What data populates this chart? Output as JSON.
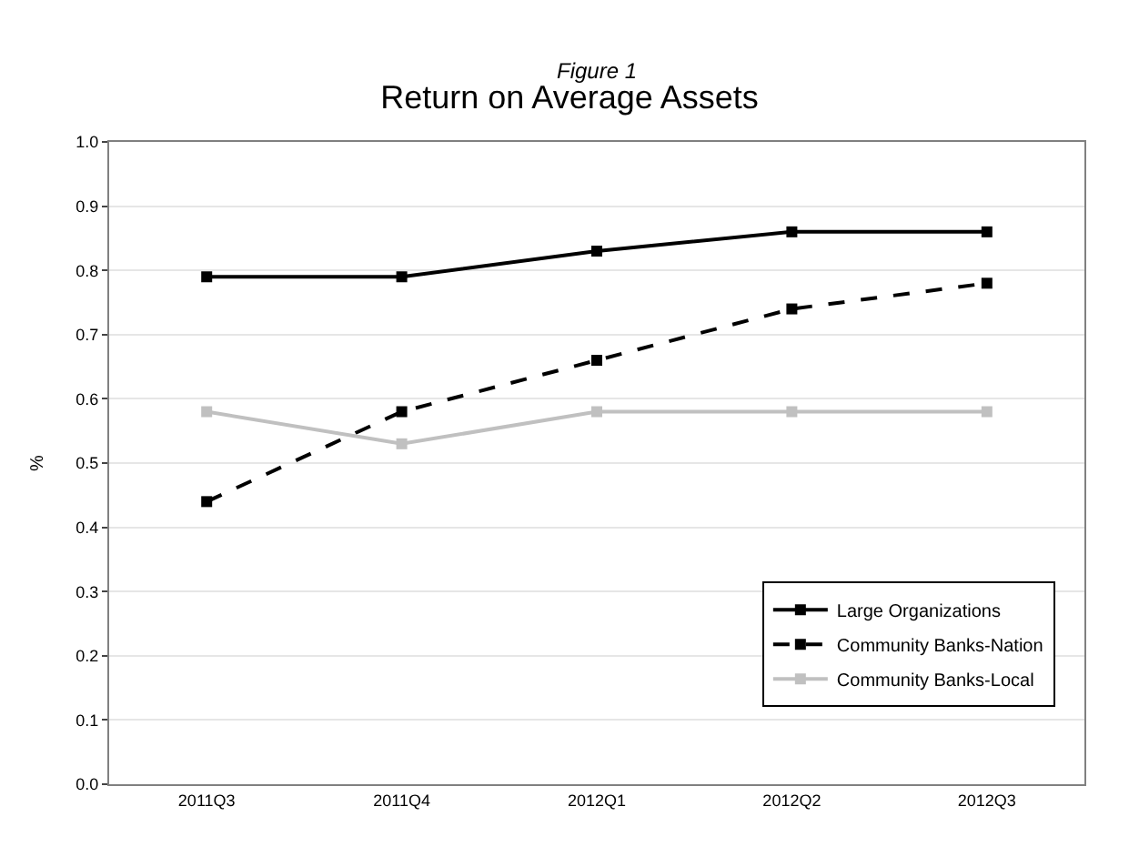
{
  "chart_data": {
    "type": "line",
    "subtitle": "Figure 1",
    "title": "Return on Average Assets",
    "ylabel": "%",
    "categories": [
      "2011Q3",
      "2011Q4",
      "2012Q1",
      "2012Q2",
      "2012Q3"
    ],
    "series": [
      {
        "name": "Large Organizations",
        "color": "#000000",
        "values": [
          0.79,
          0.79,
          0.83,
          0.86,
          0.86
        ],
        "line_style": "solid"
      },
      {
        "name": "Community Banks-Nation",
        "color": "#000000",
        "values": [
          0.44,
          0.58,
          0.66,
          0.74,
          0.78
        ],
        "line_style": "dashed"
      },
      {
        "name": "Community Banks-Local",
        "color": "#c0c0c0",
        "values": [
          0.58,
          0.53,
          0.58,
          0.58,
          0.58
        ],
        "line_style": "solid"
      }
    ],
    "ylim": [
      0,
      1
    ],
    "yticks": [
      {
        "value": 0,
        "label": "0.0"
      },
      {
        "value": 0.1,
        "label": "0.1"
      },
      {
        "value": 0.2,
        "label": "0.2"
      },
      {
        "value": 0.3,
        "label": "0.3"
      },
      {
        "value": 0.4,
        "label": "0.4"
      },
      {
        "value": 0.5,
        "label": "0.5"
      },
      {
        "value": 0.6,
        "label": "0.6"
      },
      {
        "value": 0.7,
        "label": "0.7"
      },
      {
        "value": 0.8,
        "label": "0.8"
      },
      {
        "value": 0.9,
        "label": "0.9"
      },
      {
        "value": 1,
        "label": "1.0"
      }
    ],
    "grid": "y",
    "legend": "bottom right",
    "marker": "square"
  }
}
